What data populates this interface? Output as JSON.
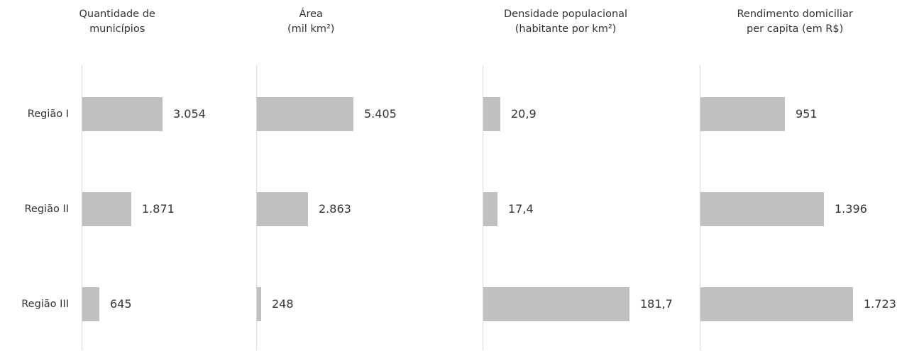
{
  "chart_data": [
    {
      "type": "bar",
      "orientation": "horizontal",
      "title": [
        "Quantidade de",
        "municípios"
      ],
      "categories": [
        "Região I",
        "Região II",
        "Região III"
      ],
      "values": [
        3054,
        1871,
        645
      ],
      "value_labels": [
        "3.054",
        "1.871",
        "645"
      ],
      "bar_color": "#c0c0c0",
      "grid": false,
      "legend": "none"
    },
    {
      "type": "bar",
      "orientation": "horizontal",
      "title": [
        "Área",
        "(mil km²)"
      ],
      "categories": [
        "Região I",
        "Região II",
        "Região III"
      ],
      "values": [
        5405,
        2863,
        248
      ],
      "value_labels": [
        "5.405",
        "2.863",
        "248"
      ],
      "bar_color": "#c0c0c0",
      "grid": false,
      "legend": "none"
    },
    {
      "type": "bar",
      "orientation": "horizontal",
      "title": [
        "Densidade populacional",
        "(habitante por km²)"
      ],
      "categories": [
        "Região I",
        "Região II",
        "Região III"
      ],
      "values": [
        20.9,
        17.4,
        181.7
      ],
      "value_labels": [
        "20,9",
        "17,4",
        "181,7"
      ],
      "bar_color": "#c0c0c0",
      "grid": false,
      "legend": "none"
    },
    {
      "type": "bar",
      "orientation": "horizontal",
      "title": [
        "Rendimento domiciliar",
        "per capita (em R$)"
      ],
      "categories": [
        "Região I",
        "Região II",
        "Região III"
      ],
      "values": [
        951,
        1396,
        1723
      ],
      "value_labels": [
        "951",
        "1.396",
        "1.723"
      ],
      "bar_color": "#c0c0c0",
      "grid": false,
      "legend": "none"
    }
  ]
}
